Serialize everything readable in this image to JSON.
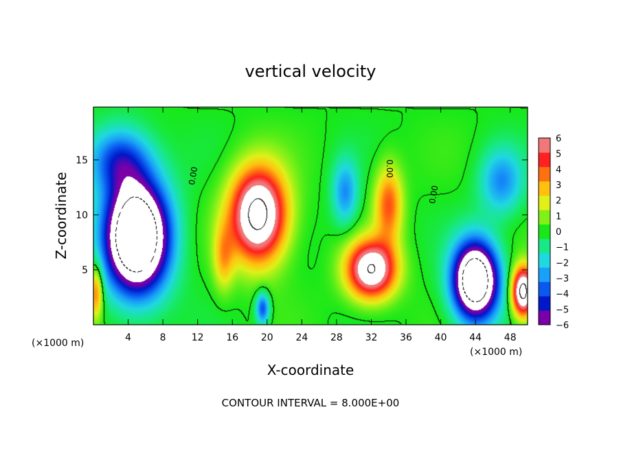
{
  "chart_data": {
    "type": "heatmap",
    "title": "vertical velocity",
    "xlabel": "X-coordinate",
    "ylabel": "Z-coordinate",
    "x_unit": "(×1000 m)",
    "x_unit_right": "(×1000 m)",
    "xlim": [
      0,
      50
    ],
    "ylim": [
      0,
      19.8
    ],
    "x_ticks": [
      4,
      8,
      12,
      16,
      20,
      24,
      28,
      32,
      36,
      40,
      44,
      48
    ],
    "x_tick_labels": [
      "4",
      "8",
      "12",
      "16",
      "20",
      "24",
      "28",
      "32",
      "36",
      "40",
      "44",
      "48"
    ],
    "y_ticks": [
      5,
      10,
      15
    ],
    "y_tick_labels": [
      "5",
      "10",
      "15"
    ],
    "colorbar": {
      "min": -6,
      "max": 6,
      "tick_labels": [
        "6",
        "5",
        "4",
        "3",
        "2",
        "1",
        "0",
        "−1",
        "−2",
        "−3",
        "−4",
        "−5",
        "−6"
      ],
      "ticks": [
        6,
        5,
        4,
        3,
        2,
        1,
        0,
        -1,
        -2,
        -3,
        -4,
        -5,
        -6
      ],
      "colors": [
        "#7a00a8",
        "#0018c8",
        "#0a58f0",
        "#1aa0f8",
        "#20d8e0",
        "#18e888",
        "#18e818",
        "#80f018",
        "#e0f018",
        "#ffc010",
        "#ff7010",
        "#ff2020",
        "#f07878"
      ]
    },
    "field_features": [
      {
        "kind": "updraft",
        "x": 19,
        "z": 10,
        "w": 9,
        "sx": 3.2,
        "sz": 4.2
      },
      {
        "kind": "updraft",
        "x": 32,
        "z": 5,
        "w": 8,
        "sx": 2.8,
        "sz": 2.6
      },
      {
        "kind": "updraft",
        "x": 34,
        "z": 11,
        "w": 4,
        "sx": 1.6,
        "sz": 3.5
      },
      {
        "kind": "updraft",
        "x": 49.5,
        "z": 3,
        "w": 9,
        "sx": 1.3,
        "sz": 2.2
      },
      {
        "kind": "updraft",
        "x": 0.3,
        "z": 3,
        "w": 4,
        "sx": 0.8,
        "sz": 2.5
      },
      {
        "kind": "updraft",
        "x": 15,
        "z": 6,
        "w": 2.5,
        "sx": 1.2,
        "sz": 3
      },
      {
        "kind": "downdraft",
        "x": 5,
        "z": 8,
        "w": -12,
        "sx": 3.6,
        "sz": 5
      },
      {
        "kind": "downdraft",
        "x": 44,
        "z": 4,
        "w": -11,
        "sx": 2.6,
        "sz": 3.5
      },
      {
        "kind": "downdraft",
        "x": 3,
        "z": 15,
        "w": -4,
        "sx": 3.5,
        "sz": 3
      },
      {
        "kind": "downdraft",
        "x": 47,
        "z": 13,
        "w": -3,
        "sx": 2.5,
        "sz": 3
      },
      {
        "kind": "downdraft",
        "x": 29,
        "z": 12,
        "w": -3,
        "sx": 1.5,
        "sz": 3
      },
      {
        "kind": "downdraft",
        "x": 19.5,
        "z": 1.5,
        "w": -4,
        "sx": 0.8,
        "sz": 1.5
      }
    ],
    "zero_contour_labels": [
      "0.00",
      "0.00",
      "0.00"
    ],
    "contour_interval_text": "CONTOUR INTERVAL = 8.000E+00"
  }
}
